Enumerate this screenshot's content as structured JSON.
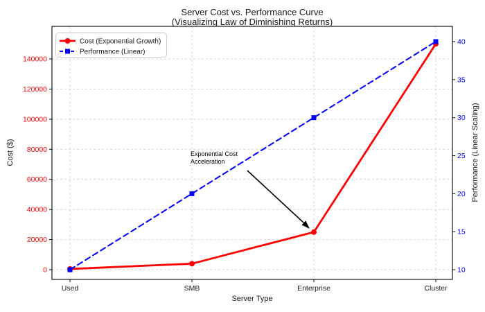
{
  "chart_data": {
    "type": "line",
    "title": "Server Cost vs. Performance Curve",
    "subtitle": "(Visualizing Law of Diminishing Returns)",
    "xlabel": "Server Type",
    "categories": [
      "Used",
      "SMB",
      "Enterprise",
      "Cluster"
    ],
    "series": [
      {
        "name": "Cost (Exponential Growth)",
        "axis": "left",
        "color": "#ff0000",
        "line_style": "solid",
        "marker": "circle",
        "values": [
          500,
          4000,
          25000,
          150000
        ]
      },
      {
        "name": "Performance (Linear)",
        "axis": "right",
        "color": "#0000ff",
        "line_style": "dashed",
        "marker": "square",
        "values": [
          10,
          20,
          30,
          40
        ]
      }
    ],
    "left_axis": {
      "label": "Cost ($)",
      "color": "#ff0000",
      "ticks": [
        0,
        20000,
        40000,
        60000,
        80000,
        100000,
        120000,
        140000
      ]
    },
    "right_axis": {
      "label": "Performance (Linear Scaling)",
      "color": "#0000ff",
      "ticks": [
        10,
        15,
        20,
        25,
        30,
        35,
        40
      ]
    },
    "annotation": {
      "lines": [
        "Exponential Cost",
        "Acceleration"
      ],
      "arrow_points_to": {
        "category": "Enterprise",
        "series": "Cost (Exponential Growth)",
        "value": 25000
      }
    },
    "legend": {
      "position": "upper left"
    },
    "grid": {
      "visible": true,
      "style": "dashed",
      "color": "#d4d4d4"
    }
  }
}
